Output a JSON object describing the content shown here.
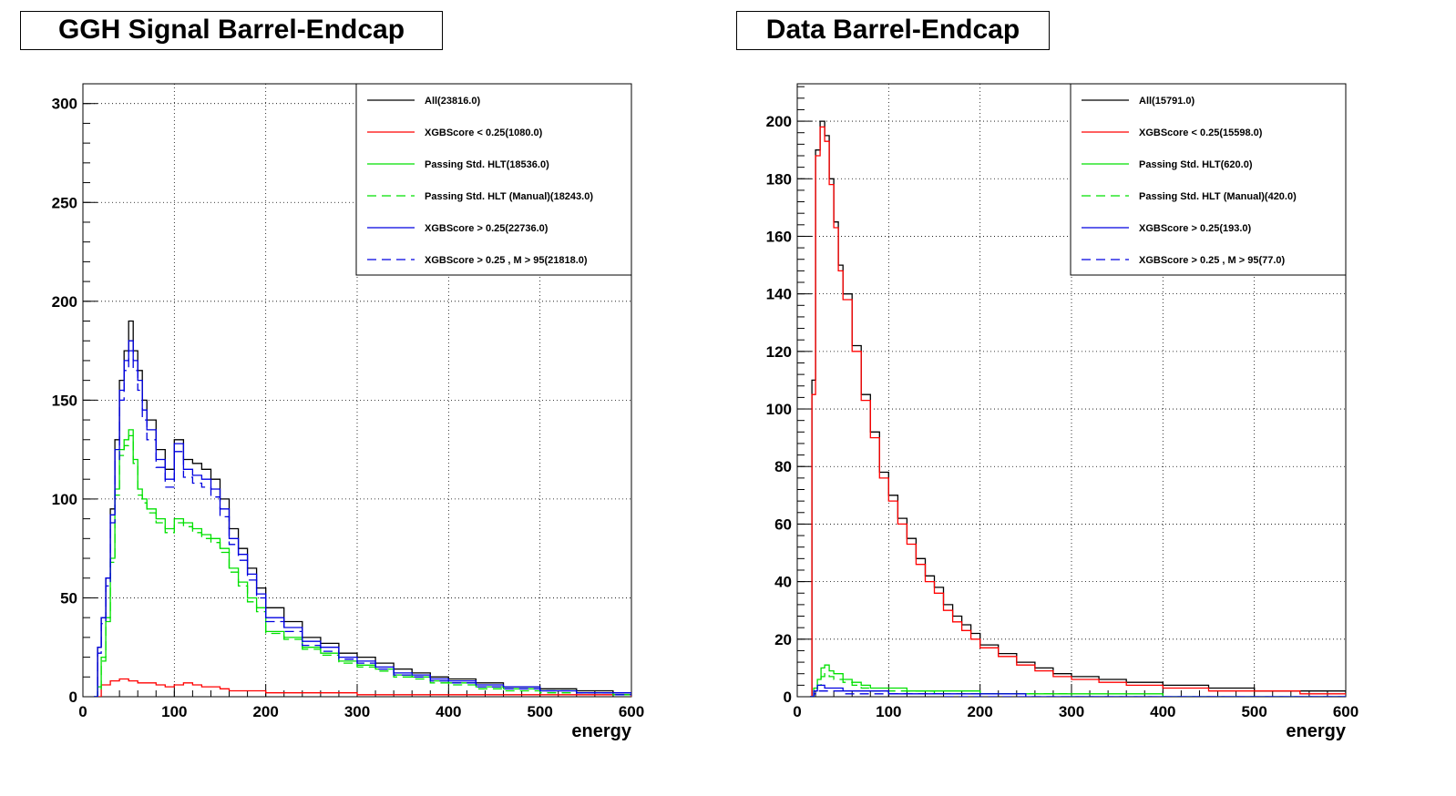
{
  "chart_data": [
    {
      "type": "line",
      "title": "GGH Signal Barrel-Endcap",
      "xlabel": "energy",
      "ylabel": "",
      "xlim": [
        0,
        600
      ],
      "ylim": [
        0,
        310
      ],
      "xticks": [
        "0",
        "100",
        "200",
        "300",
        "400",
        "500",
        "600"
      ],
      "yticks": [
        "0",
        "50",
        "100",
        "150",
        "200",
        "250",
        "300"
      ],
      "grid": true,
      "legend_position": "top-right",
      "series": [
        {
          "name": "All(23816.0)",
          "color": "#000000",
          "dash": "solid",
          "x": [
            12,
            16,
            20,
            25,
            30,
            35,
            40,
            45,
            50,
            55,
            60,
            65,
            70,
            80,
            90,
            100,
            110,
            120,
            130,
            140,
            150,
            160,
            170,
            180,
            190,
            200,
            220,
            240,
            260,
            280,
            300,
            320,
            340,
            360,
            380,
            400,
            430,
            460,
            500,
            540,
            580,
            600
          ],
          "y": [
            0,
            25,
            40,
            60,
            95,
            130,
            160,
            175,
            190,
            175,
            165,
            150,
            140,
            125,
            115,
            130,
            120,
            118,
            115,
            110,
            100,
            85,
            75,
            65,
            55,
            45,
            38,
            30,
            27,
            22,
            20,
            17,
            14,
            12,
            10,
            9,
            7,
            5,
            4,
            3,
            2,
            2
          ]
        },
        {
          "name": "XGBScore < 0.25(1080.0)",
          "color": "#ff0000",
          "dash": "solid",
          "x": [
            12,
            20,
            30,
            40,
            50,
            60,
            70,
            80,
            90,
            100,
            110,
            120,
            130,
            140,
            150,
            160,
            180,
            200,
            230,
            260,
            300,
            350,
            400,
            450,
            500,
            550,
            600
          ],
          "y": [
            0,
            6,
            8,
            9,
            8,
            7,
            7,
            6,
            5,
            6,
            7,
            6,
            5,
            5,
            4,
            3,
            3,
            2,
            2,
            2,
            1,
            1,
            1,
            1,
            1,
            1,
            0
          ]
        },
        {
          "name": "Passing Std. HLT(18536.0)",
          "color": "#00e000",
          "dash": "solid",
          "x": [
            12,
            16,
            20,
            25,
            30,
            35,
            40,
            45,
            50,
            55,
            60,
            65,
            70,
            80,
            90,
            100,
            110,
            120,
            130,
            140,
            150,
            160,
            170,
            180,
            190,
            200,
            220,
            240,
            260,
            280,
            300,
            320,
            340,
            360,
            380,
            400,
            430,
            460,
            500,
            540,
            580,
            600
          ],
          "y": [
            0,
            5,
            20,
            40,
            70,
            105,
            125,
            130,
            135,
            120,
            105,
            100,
            95,
            90,
            85,
            90,
            88,
            85,
            82,
            80,
            75,
            65,
            58,
            50,
            45,
            33,
            30,
            25,
            22,
            18,
            16,
            14,
            11,
            10,
            8,
            7,
            5,
            4,
            3,
            2,
            1,
            1
          ]
        },
        {
          "name": "Passing Std. HLT (Manual)(18243.0)",
          "color": "#00e000",
          "dash": "dash",
          "x": [
            12,
            16,
            20,
            25,
            30,
            35,
            40,
            45,
            50,
            55,
            60,
            65,
            70,
            80,
            90,
            100,
            110,
            120,
            130,
            140,
            150,
            160,
            170,
            180,
            190,
            200,
            220,
            240,
            260,
            280,
            300,
            320,
            340,
            360,
            380,
            400,
            430,
            460,
            500,
            540,
            580,
            600
          ],
          "y": [
            0,
            4,
            18,
            38,
            68,
            102,
            122,
            127,
            132,
            118,
            102,
            98,
            93,
            88,
            83,
            88,
            86,
            83,
            80,
            78,
            73,
            63,
            56,
            48,
            43,
            32,
            29,
            24,
            21,
            17,
            15,
            13,
            10,
            9,
            7,
            6,
            4,
            3,
            2,
            2,
            1,
            1
          ]
        },
        {
          "name": "XGBScore > 0.25(22736.0)",
          "color": "#0000e0",
          "dash": "solid",
          "x": [
            12,
            16,
            20,
            25,
            30,
            35,
            40,
            45,
            50,
            55,
            60,
            65,
            70,
            80,
            90,
            100,
            110,
            120,
            130,
            140,
            150,
            160,
            170,
            180,
            190,
            200,
            220,
            240,
            260,
            280,
            300,
            320,
            340,
            360,
            380,
            400,
            430,
            460,
            500,
            540,
            580,
            600
          ],
          "y": [
            0,
            25,
            40,
            60,
            92,
            125,
            155,
            170,
            180,
            170,
            160,
            145,
            135,
            120,
            110,
            128,
            115,
            112,
            110,
            105,
            95,
            80,
            72,
            62,
            52,
            40,
            35,
            28,
            25,
            20,
            18,
            15,
            12,
            11,
            9,
            8,
            6,
            5,
            3,
            2,
            2,
            2
          ]
        },
        {
          "name": "XGBScore > 0.25 , M > 95(21818.0)",
          "color": "#0000e0",
          "dash": "dash",
          "x": [
            12,
            16,
            20,
            25,
            30,
            35,
            40,
            45,
            50,
            55,
            60,
            65,
            70,
            80,
            90,
            100,
            110,
            120,
            130,
            140,
            150,
            160,
            170,
            180,
            190,
            200,
            220,
            240,
            260,
            280,
            300,
            320,
            340,
            360,
            380,
            400,
            430,
            460,
            500,
            540,
            580,
            600
          ],
          "y": [
            0,
            22,
            37,
            56,
            88,
            120,
            150,
            165,
            175,
            165,
            155,
            140,
            130,
            116,
            106,
            124,
            111,
            108,
            106,
            101,
            91,
            77,
            69,
            59,
            50,
            38,
            33,
            26,
            23,
            19,
            17,
            14,
            11,
            10,
            8,
            7,
            5,
            4,
            3,
            2,
            1,
            1
          ]
        }
      ]
    },
    {
      "type": "line",
      "title": "Data Barrel-Endcap",
      "xlabel": "energy",
      "ylabel": "",
      "xlim": [
        0,
        600
      ],
      "ylim": [
        0,
        213
      ],
      "xticks": [
        "0",
        "100",
        "200",
        "300",
        "400",
        "500",
        "600"
      ],
      "yticks": [
        "0",
        "20",
        "40",
        "60",
        "80",
        "100",
        "120",
        "140",
        "160",
        "180",
        "200"
      ],
      "grid": true,
      "legend_position": "top-right",
      "series": [
        {
          "name": "All(15791.0)",
          "color": "#000000",
          "dash": "solid",
          "x": [
            14,
            16,
            20,
            25,
            30,
            35,
            40,
            45,
            50,
            60,
            70,
            80,
            90,
            100,
            110,
            120,
            130,
            140,
            150,
            160,
            170,
            180,
            190,
            200,
            220,
            240,
            260,
            280,
            300,
            330,
            360,
            400,
            450,
            500,
            550,
            600
          ],
          "y": [
            0,
            110,
            190,
            200,
            195,
            180,
            165,
            150,
            140,
            122,
            105,
            92,
            78,
            70,
            62,
            55,
            48,
            42,
            38,
            32,
            28,
            25,
            22,
            18,
            15,
            12,
            10,
            8,
            7,
            6,
            5,
            4,
            3,
            2,
            2,
            1
          ]
        },
        {
          "name": "XGBScore < 0.25(15598.0)",
          "color": "#ff0000",
          "dash": "solid",
          "x": [
            14,
            16,
            20,
            25,
            30,
            35,
            40,
            45,
            50,
            60,
            70,
            80,
            90,
            100,
            110,
            120,
            130,
            140,
            150,
            160,
            170,
            180,
            190,
            200,
            220,
            240,
            260,
            280,
            300,
            330,
            360,
            400,
            450,
            500,
            550,
            600
          ],
          "y": [
            0,
            105,
            188,
            198,
            193,
            178,
            163,
            148,
            138,
            120,
            103,
            90,
            76,
            68,
            60,
            53,
            46,
            40,
            36,
            30,
            26,
            23,
            20,
            17,
            14,
            11,
            9,
            7,
            6,
            5,
            4,
            3,
            2,
            2,
            1,
            1
          ]
        },
        {
          "name": "Passing Std. HLT(620.0)",
          "color": "#00e000",
          "dash": "solid",
          "x": [
            14,
            18,
            22,
            26,
            30,
            35,
            40,
            50,
            60,
            70,
            80,
            100,
            120,
            150,
            180,
            200,
            250,
            300,
            350,
            400,
            450,
            500,
            600
          ],
          "y": [
            0,
            3,
            6,
            10,
            11,
            9,
            8,
            6,
            5,
            4,
            3,
            3,
            2,
            2,
            2,
            1,
            1,
            1,
            1,
            0,
            0,
            0,
            0
          ]
        },
        {
          "name": "Passing Std. HLT (Manual)(420.0)",
          "color": "#00e000",
          "dash": "dash",
          "x": [
            14,
            18,
            22,
            26,
            30,
            35,
            40,
            50,
            60,
            70,
            80,
            100,
            120,
            150,
            180,
            200,
            250,
            300,
            350,
            400,
            450,
            500,
            600
          ],
          "y": [
            0,
            2,
            4,
            7,
            8,
            7,
            6,
            5,
            4,
            3,
            2,
            2,
            2,
            1,
            1,
            1,
            1,
            0,
            0,
            0,
            0,
            0,
            0
          ]
        },
        {
          "name": "XGBScore > 0.25(193.0)",
          "color": "#0000e0",
          "dash": "solid",
          "x": [
            14,
            18,
            22,
            26,
            30,
            40,
            50,
            60,
            80,
            100,
            130,
            160,
            200,
            250,
            300,
            400,
            500,
            600
          ],
          "y": [
            0,
            2,
            4,
            4,
            3,
            3,
            2,
            2,
            2,
            1,
            1,
            1,
            1,
            0,
            0,
            0,
            0,
            0
          ]
        },
        {
          "name": "XGBScore > 0.25 , M > 95(77.0)",
          "color": "#0000e0",
          "dash": "dash",
          "x": [
            14,
            18,
            22,
            26,
            30,
            40,
            50,
            60,
            80,
            100,
            130,
            160,
            200,
            250,
            300,
            400,
            500,
            600
          ],
          "y": [
            0,
            1,
            2,
            2,
            2,
            2,
            1,
            1,
            1,
            1,
            1,
            0,
            0,
            0,
            0,
            0,
            0,
            0
          ]
        }
      ]
    }
  ]
}
